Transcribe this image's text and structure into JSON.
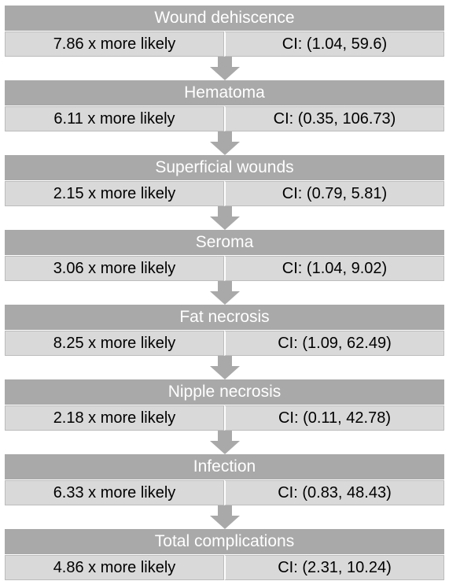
{
  "colors": {
    "header_bg": "#a9a9a9",
    "header_text": "#ffffff",
    "cell_bg": "#d9d9d9",
    "arrow": "#a9a9a9"
  },
  "items": [
    {
      "title": "Wound dehiscence",
      "likelihood": "7.86 x more likely",
      "ci": "CI: (1.04, 59.6)"
    },
    {
      "title": "Hematoma",
      "likelihood": "6.11 x more likely",
      "ci": "CI: (0.35, 106.73)"
    },
    {
      "title": "Superficial wounds",
      "likelihood": "2.15 x more likely",
      "ci": "CI: (0.79, 5.81)"
    },
    {
      "title": "Seroma",
      "likelihood": "3.06 x more likely",
      "ci": "CI: (1.04, 9.02)"
    },
    {
      "title": "Fat necrosis",
      "likelihood": "8.25 x more likely",
      "ci": "CI: (1.09, 62.49)"
    },
    {
      "title": "Nipple necrosis",
      "likelihood": "2.18 x more likely",
      "ci": "CI: (0.11, 42.78)"
    },
    {
      "title": "Infection",
      "likelihood": "6.33 x more likely",
      "ci": "CI: (0.83, 48.43)"
    },
    {
      "title": "Total complications",
      "likelihood": "4.86 x more likely",
      "ci": "CI: (2.31, 10.24)"
    }
  ]
}
